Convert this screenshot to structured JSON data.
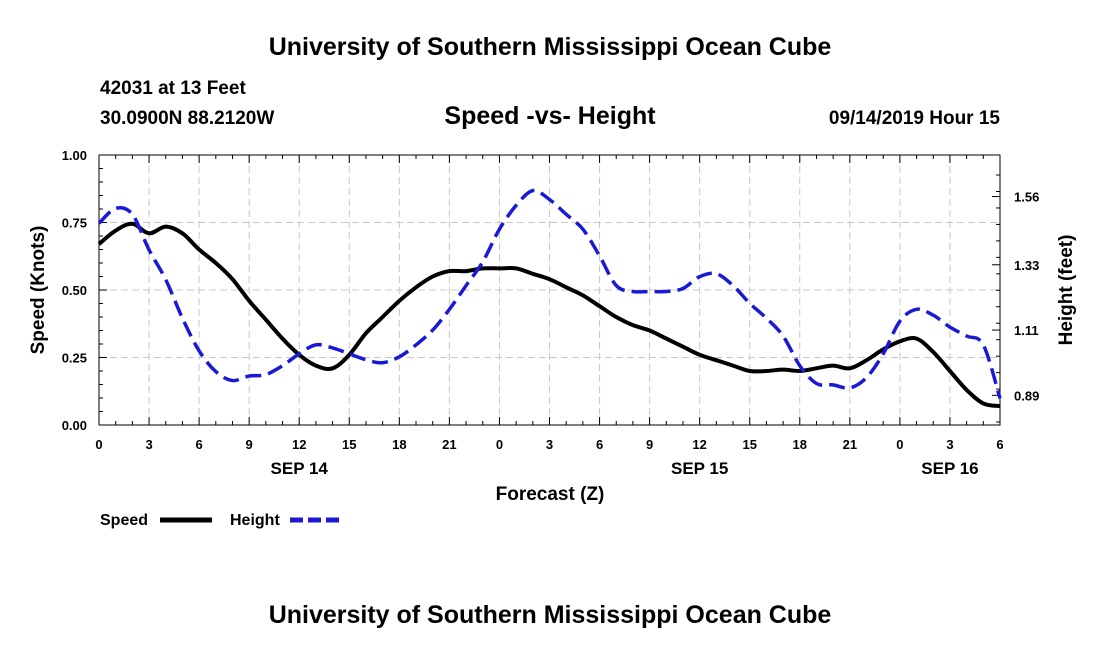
{
  "header": {
    "title": "University of Southern Mississippi Ocean Cube",
    "station": "42031 at 13 Feet",
    "location": "30.0900N 88.2120W",
    "datetime": "09/14/2019 Hour 15",
    "footer": "University of Southern Mississippi Ocean Cube"
  },
  "chart_data": {
    "type": "line",
    "title": "Speed -vs- Height",
    "xlabel": "Forecast (Z)",
    "ylabel": "Speed (Knots)",
    "y2label": "Height (feet)",
    "xlim": [
      0,
      54
    ],
    "ylim": [
      0,
      1.0
    ],
    "y2lim": [
      0.79,
      1.7
    ],
    "grid": true,
    "x_ticks": [
      0,
      3,
      6,
      9,
      12,
      15,
      18,
      21,
      24,
      27,
      30,
      33,
      36,
      39,
      42,
      45,
      48,
      51,
      54
    ],
    "x_tick_labels": [
      "0",
      "3",
      "6",
      "9",
      "12",
      "15",
      "18",
      "21",
      "0",
      "3",
      "6",
      "9",
      "12",
      "15",
      "18",
      "21",
      "0",
      "3",
      "6"
    ],
    "y_ticks": [
      0,
      0.25,
      0.5,
      0.75,
      1.0
    ],
    "y_tick_labels": [
      "0.00",
      "0.25",
      "0.50",
      "0.75",
      "1.00"
    ],
    "y2_ticks": [
      0.89,
      1.11,
      1.33,
      1.56
    ],
    "y2_tick_labels": [
      "0.89",
      "1.11",
      "1.33",
      "1.56"
    ],
    "date_labels": [
      {
        "x": 12,
        "label": "SEP 14"
      },
      {
        "x": 36,
        "label": "SEP 15"
      },
      {
        "x": 51,
        "label": "SEP 16"
      }
    ],
    "legend_position": "bottom-left",
    "series": [
      {
        "name": "Speed",
        "axis": "left",
        "color": "#000000",
        "style": "solid",
        "x": [
          0,
          1,
          2,
          3,
          4,
          5,
          6,
          7,
          8,
          9,
          10,
          11,
          12,
          13,
          14,
          15,
          16,
          17,
          18,
          19,
          20,
          21,
          22,
          23,
          24,
          25,
          26,
          27,
          28,
          29,
          30,
          31,
          32,
          33,
          34,
          35,
          36,
          37,
          38,
          39,
          40,
          41,
          42,
          43,
          44,
          45,
          46,
          47,
          48,
          49,
          50,
          51,
          52,
          53,
          54
        ],
        "values": [
          0.67,
          0.72,
          0.745,
          0.71,
          0.735,
          0.71,
          0.65,
          0.6,
          0.54,
          0.46,
          0.39,
          0.32,
          0.26,
          0.22,
          0.21,
          0.26,
          0.34,
          0.4,
          0.46,
          0.51,
          0.55,
          0.57,
          0.57,
          0.58,
          0.58,
          0.58,
          0.56,
          0.54,
          0.51,
          0.48,
          0.44,
          0.4,
          0.37,
          0.35,
          0.32,
          0.29,
          0.26,
          0.24,
          0.22,
          0.2,
          0.2,
          0.205,
          0.2,
          0.21,
          0.22,
          0.21,
          0.24,
          0.28,
          0.31,
          0.32,
          0.27,
          0.2,
          0.13,
          0.08,
          0.07
        ]
      },
      {
        "name": "Height",
        "axis": "right",
        "color": "#1a1ad6",
        "style": "dashed",
        "x": [
          0,
          1,
          2,
          3,
          4,
          5,
          6,
          7,
          8,
          9,
          10,
          11,
          12,
          13,
          14,
          15,
          16,
          17,
          18,
          19,
          20,
          21,
          22,
          23,
          24,
          25,
          26,
          27,
          28,
          29,
          30,
          31,
          32,
          33,
          34,
          35,
          36,
          37,
          38,
          39,
          40,
          41,
          42,
          43,
          44,
          45,
          46,
          47,
          48,
          49,
          50,
          51,
          52,
          53,
          54
        ],
        "values": [
          1.47,
          1.52,
          1.5,
          1.38,
          1.28,
          1.15,
          1.04,
          0.97,
          0.94,
          0.955,
          0.96,
          0.99,
          1.03,
          1.06,
          1.05,
          1.03,
          1.01,
          1.0,
          1.02,
          1.06,
          1.11,
          1.18,
          1.26,
          1.34,
          1.45,
          1.53,
          1.58,
          1.55,
          1.5,
          1.45,
          1.36,
          1.26,
          1.24,
          1.24,
          1.24,
          1.25,
          1.29,
          1.3,
          1.26,
          1.2,
          1.15,
          1.09,
          0.99,
          0.93,
          0.925,
          0.915,
          0.95,
          1.03,
          1.14,
          1.18,
          1.16,
          1.12,
          1.09,
          1.06,
          0.88
        ]
      }
    ]
  }
}
